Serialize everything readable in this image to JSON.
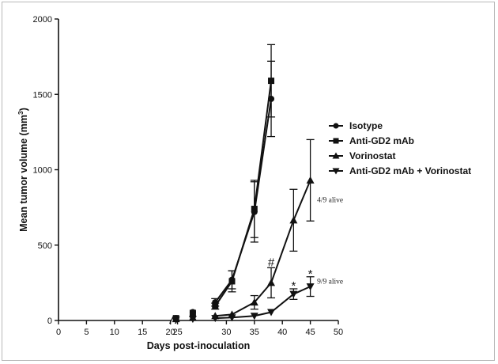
{
  "chart_data": {
    "type": "line",
    "title": "",
    "xlabel": "Days post-inoculation",
    "ylabel": "Mean tumor volume (mm",
    "ylabel_superscript": "3",
    "ylabel_close": ")",
    "xlim": [
      0,
      50
    ],
    "ylim": [
      0,
      2000
    ],
    "x_axis_break": [
      20,
      25
    ],
    "x_ticks": [
      "0",
      "5",
      "10",
      "15",
      "20",
      "25",
      "30",
      "35",
      "40",
      "45",
      "50"
    ],
    "x_tick_values": [
      0,
      5,
      10,
      15,
      20,
      25,
      30,
      35,
      40,
      45,
      50
    ],
    "y_ticks": [
      "0",
      "500",
      "1000",
      "1500",
      "2000"
    ],
    "y_tick_values": [
      0,
      500,
      1000,
      1500,
      2000
    ],
    "legend_position": "right",
    "series": [
      {
        "name": "Isotype",
        "marker": "circle",
        "x": [
          0,
          21,
          24,
          28,
          31,
          35,
          38
        ],
        "y": [
          0,
          15,
          55,
          120,
          270,
          720,
          1470
        ],
        "err": [
          0,
          0,
          0,
          25,
          60,
          200,
          250
        ]
      },
      {
        "name": "Anti-GD2 mAb",
        "marker": "square",
        "x": [
          0,
          21,
          24,
          28,
          31,
          35,
          38
        ],
        "y": [
          0,
          15,
          50,
          95,
          260,
          740,
          1590
        ],
        "err": [
          0,
          0,
          0,
          20,
          70,
          190,
          240
        ]
      },
      {
        "name": "Vorinostat",
        "marker": "triangle-up",
        "x": [
          0,
          21,
          24,
          28,
          31,
          35,
          38,
          42,
          45
        ],
        "y": [
          0,
          10,
          20,
          30,
          40,
          120,
          250,
          665,
          930
        ],
        "err": [
          0,
          0,
          0,
          0,
          0,
          45,
          100,
          205,
          270
        ]
      },
      {
        "name": "Anti-GD2 mAb + Vorinostat",
        "marker": "triangle-down",
        "x": [
          0,
          21,
          24,
          28,
          31,
          35,
          38,
          42,
          45
        ],
        "y": [
          0,
          5,
          10,
          15,
          20,
          30,
          55,
          175,
          225
        ],
        "err": [
          0,
          0,
          0,
          0,
          0,
          0,
          0,
          35,
          65
        ]
      }
    ],
    "annotations": [
      {
        "text": "#",
        "x": 38,
        "y": 385,
        "style": "sig"
      },
      {
        "text": "*",
        "x": 42,
        "y": 230,
        "style": "sig"
      },
      {
        "text": "*",
        "x": 45,
        "y": 310,
        "style": "sig"
      },
      {
        "text": "4/9 alive",
        "x": 46.2,
        "y": 800,
        "style": "annot"
      },
      {
        "text": "9/9 alive",
        "x": 46.2,
        "y": 260,
        "style": "annot"
      }
    ]
  }
}
